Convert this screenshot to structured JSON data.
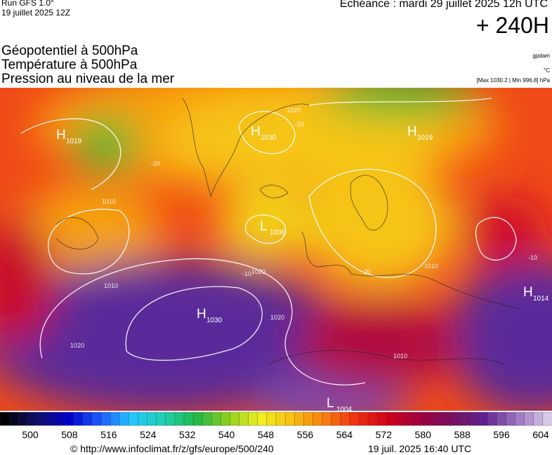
{
  "header": {
    "run": "Run GFS 1.0°",
    "run_date": "19 juillet 2025 12Z",
    "valid": "Echéance : mardi 29 juillet 2025 12h UTC",
    "lead": "+ 240H",
    "titles": [
      "Géopotentiel à 500hPa",
      "Température à 500hPa",
      "Pression au niveau de la mer"
    ],
    "units": [
      "gpdam",
      "°C",
      "[Max 1030.2 | Min 996.8] hPa"
    ]
  },
  "pressure_centers": [
    {
      "type": "H",
      "value": "1019"
    },
    {
      "type": "H",
      "value": "1030"
    },
    {
      "type": "H",
      "value": "1019"
    },
    {
      "type": "L",
      "value": "1006"
    },
    {
      "type": "H",
      "value": "1030"
    },
    {
      "type": "H",
      "value": "1014"
    },
    {
      "type": "L",
      "value": "1004"
    }
  ],
  "contour_labels": [
    "1020",
    "-20",
    "1010",
    "-20",
    "1020",
    "-10",
    "1010",
    "1020",
    "1020",
    "1010",
    "-20",
    "1010",
    "-10"
  ],
  "legend": {
    "ticks": [
      500,
      508,
      516,
      524,
      532,
      540,
      548,
      556,
      564,
      572,
      580,
      588,
      596,
      604
    ]
  },
  "footer": {
    "source": "© http://www.infoclimat.fr/z/gfs/europe/500/240",
    "generated": "19 juil. 2025 16:40 UTC"
  }
}
